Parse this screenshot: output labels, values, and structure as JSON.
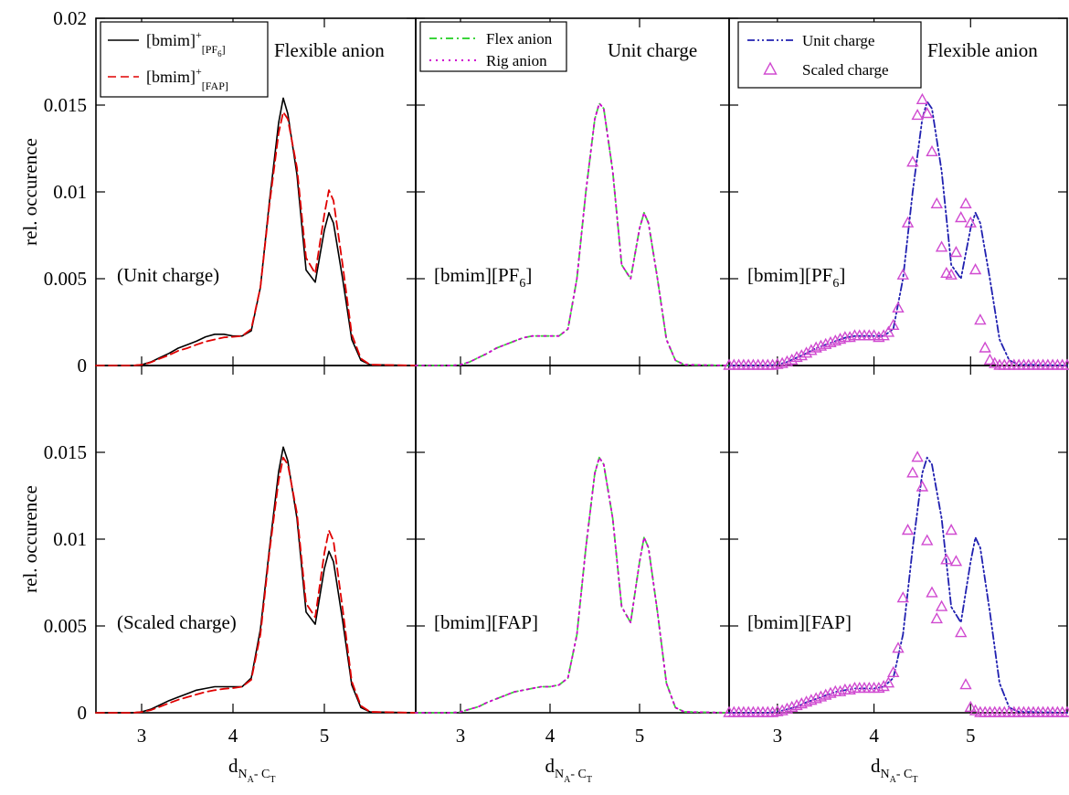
{
  "chart_data": {
    "type": "line",
    "ylabel": "rel. occurence",
    "xlabel": {
      "main": "d",
      "sub_a": "N",
      "sub_a_sub": "A",
      "sep": "- C",
      "sub_b": "T"
    },
    "xlim": [
      2.5,
      6.0
    ],
    "ylim": [
      0,
      0.02
    ],
    "xticks": [
      "3",
      "4",
      "5"
    ],
    "xtick_values": [
      3,
      4,
      5
    ],
    "yticks_top": [
      "0",
      "0.005",
      "0.01",
      "0.015",
      "0.02"
    ],
    "yticks_bottom": [
      "0",
      "0.005",
      "0.01",
      "0.015"
    ],
    "ytick_values": [
      0,
      0.005,
      0.01,
      0.015,
      0.02
    ],
    "colors": {
      "black": "#000000",
      "red": "#e00000",
      "green": "#3bd43b",
      "magenta": "#d000d0",
      "blue": "#2020b0",
      "violet": "#d04ad0"
    },
    "x": [
      2.5,
      2.9,
      3.0,
      3.1,
      3.2,
      3.3,
      3.4,
      3.5,
      3.6,
      3.7,
      3.8,
      3.9,
      4.0,
      4.1,
      4.2,
      4.3,
      4.4,
      4.5,
      4.55,
      4.6,
      4.7,
      4.8,
      4.9,
      5.0,
      5.05,
      5.1,
      5.2,
      5.3,
      5.4,
      5.5,
      6.0
    ],
    "panels": [
      {
        "row": 0,
        "col": 0,
        "title": "Flexible anion",
        "annotation": "(Unit charge)",
        "series": [
          {
            "label": "[bmim]",
            "sup": "+",
            "sub": "[PF",
            "subsub": "6",
            "subend": "]",
            "color": "black",
            "style": "solid",
            "values": [
              0,
              0,
              5e-05,
              0.0002,
              0.00045,
              0.0007,
              0.001,
              0.0012,
              0.0014,
              0.00165,
              0.0018,
              0.0018,
              0.0017,
              0.0017,
              0.002,
              0.0045,
              0.0095,
              0.014,
              0.0154,
              0.0145,
              0.011,
              0.0055,
              0.0048,
              0.0078,
              0.0088,
              0.0082,
              0.005,
              0.0015,
              0.0003,
              5e-05,
              0
            ]
          },
          {
            "label": "[bmim]",
            "sup": "+",
            "sub": "[FAP]",
            "color": "red",
            "style": "dashed",
            "values": [
              0,
              0,
              4e-05,
              0.00018,
              0.0004,
              0.0006,
              0.00085,
              0.001,
              0.0012,
              0.00138,
              0.0015,
              0.00162,
              0.00165,
              0.0017,
              0.0021,
              0.0045,
              0.0093,
              0.0134,
              0.0146,
              0.0142,
              0.0114,
              0.0062,
              0.0053,
              0.0087,
              0.0101,
              0.0095,
              0.0058,
              0.0018,
              0.0004,
              5e-05,
              0
            ]
          }
        ]
      },
      {
        "row": 0,
        "col": 1,
        "title": "Unit charge",
        "annotation": "[bmim][PF",
        "annotation_sub": "6",
        "annotation_end": "]",
        "series": [
          {
            "label": "Flex anion",
            "color": "green",
            "style": "dashdot",
            "values": [
              0,
              0,
              5e-05,
              0.0002,
              0.00045,
              0.0007,
              0.001,
              0.0012,
              0.0014,
              0.0016,
              0.0017,
              0.0017,
              0.0017,
              0.0017,
              0.0021,
              0.005,
              0.01,
              0.0142,
              0.0151,
              0.0148,
              0.0112,
              0.0058,
              0.005,
              0.0079,
              0.0088,
              0.0082,
              0.005,
              0.0015,
              0.0003,
              5e-05,
              0
            ]
          },
          {
            "label": "Rig anion",
            "color": "magenta",
            "style": "dotted",
            "values": [
              0,
              0,
              5e-05,
              0.0002,
              0.00045,
              0.0007,
              0.001,
              0.0012,
              0.0014,
              0.0016,
              0.0017,
              0.0017,
              0.0017,
              0.0017,
              0.0021,
              0.005,
              0.01,
              0.0142,
              0.0151,
              0.0148,
              0.0112,
              0.0058,
              0.005,
              0.0079,
              0.0088,
              0.0082,
              0.005,
              0.0015,
              0.0003,
              5e-05,
              0
            ]
          }
        ]
      },
      {
        "row": 0,
        "col": 2,
        "title": "Flexible anion",
        "annotation": "[bmim][PF",
        "annotation_sub": "6",
        "annotation_end": "]",
        "series": [
          {
            "label": "Unit charge",
            "color": "blue",
            "style": "dashdotdot",
            "values": [
              0,
              0,
              5e-05,
              0.0002,
              0.00045,
              0.0007,
              0.001,
              0.0012,
              0.0014,
              0.0016,
              0.0017,
              0.0017,
              0.0017,
              0.0017,
              0.0021,
              0.005,
              0.01,
              0.0142,
              0.0152,
              0.0148,
              0.0112,
              0.0058,
              0.005,
              0.0079,
              0.0088,
              0.0082,
              0.005,
              0.0015,
              0.0003,
              5e-05,
              0
            ]
          },
          {
            "label": "Scaled charge",
            "color": "violet",
            "style": "markers",
            "mx": [
              2.5,
              2.55,
              2.6,
              2.65,
              2.7,
              2.75,
              2.8,
              2.85,
              2.9,
              2.95,
              3.0,
              3.05,
              3.1,
              3.15,
              3.2,
              3.25,
              3.3,
              3.35,
              3.4,
              3.45,
              3.5,
              3.55,
              3.6,
              3.65,
              3.7,
              3.75,
              3.8,
              3.85,
              3.9,
              3.95,
              4.0,
              4.05,
              4.1,
              4.15,
              4.2,
              4.25,
              4.3,
              4.35,
              4.4,
              4.45,
              4.5,
              4.55,
              4.6,
              4.65,
              4.7,
              4.75,
              4.8,
              4.85,
              4.9,
              4.95,
              5.0,
              5.05,
              5.1,
              5.15,
              5.2,
              5.25,
              5.3,
              5.35,
              5.4,
              5.45,
              5.5,
              5.55,
              5.6,
              5.65,
              5.7,
              5.75,
              5.8,
              5.85,
              5.9,
              5.95,
              6.0
            ],
            "my": [
              0,
              0,
              0,
              0,
              0,
              0,
              0,
              0,
              0,
              0,
              5e-05,
              0.0001,
              0.0002,
              0.0003,
              0.00045,
              0.00055,
              0.0007,
              0.00085,
              0.001,
              0.0011,
              0.0012,
              0.0013,
              0.0014,
              0.0015,
              0.0016,
              0.0016,
              0.0017,
              0.0017,
              0.0017,
              0.0017,
              0.0017,
              0.0016,
              0.0017,
              0.0019,
              0.0023,
              0.0033,
              0.0052,
              0.0082,
              0.0117,
              0.0144,
              0.0153,
              0.0145,
              0.0123,
              0.0093,
              0.0068,
              0.0053,
              0.0052,
              0.0065,
              0.0085,
              0.0093,
              0.0082,
              0.0055,
              0.0026,
              0.001,
              0.0003,
              0.0001,
              0,
              0,
              0,
              0,
              0,
              0,
              0,
              0,
              0,
              0,
              0,
              0,
              0,
              0,
              0
            ]
          }
        ]
      },
      {
        "row": 1,
        "col": 0,
        "title": "",
        "annotation": "(Scaled charge)",
        "series": [
          {
            "label": "[bmim]+[PF6]",
            "color": "black",
            "style": "solid",
            "values": [
              0,
              0,
              5e-05,
              0.0002,
              0.00045,
              0.0007,
              0.0009,
              0.0011,
              0.0013,
              0.0014,
              0.0015,
              0.0015,
              0.0015,
              0.0015,
              0.002,
              0.0048,
              0.0095,
              0.0139,
              0.0153,
              0.0145,
              0.0112,
              0.0058,
              0.0051,
              0.0083,
              0.0093,
              0.0087,
              0.0053,
              0.0016,
              0.0003,
              5e-05,
              0
            ]
          },
          {
            "label": "[bmim]+[FAP]",
            "color": "red",
            "style": "dashed",
            "values": [
              0,
              0,
              4e-05,
              0.00015,
              0.00035,
              0.00055,
              0.00075,
              0.0009,
              0.00105,
              0.0012,
              0.0013,
              0.00138,
              0.00142,
              0.0015,
              0.0019,
              0.0045,
              0.0093,
              0.0134,
              0.0147,
              0.0143,
              0.0115,
              0.0063,
              0.0055,
              0.0092,
              0.0105,
              0.0099,
              0.006,
              0.0018,
              0.0004,
              5e-05,
              0
            ]
          }
        ]
      },
      {
        "row": 1,
        "col": 1,
        "title": "",
        "annotation": "[bmim][FAP]",
        "series": [
          {
            "label": "Flex anion",
            "color": "green",
            "style": "dashdot",
            "values": [
              0,
              0,
              5e-05,
              0.0002,
              0.00035,
              0.0006,
              0.0008,
              0.001,
              0.0012,
              0.0013,
              0.0014,
              0.0015,
              0.0015,
              0.0016,
              0.002,
              0.0045,
              0.0095,
              0.0138,
              0.0147,
              0.0143,
              0.0112,
              0.0061,
              0.0052,
              0.0087,
              0.0101,
              0.0095,
              0.0058,
              0.0017,
              0.0003,
              5e-05,
              0
            ]
          },
          {
            "label": "Rig anion",
            "color": "magenta",
            "style": "dotted",
            "values": [
              0,
              0,
              5e-05,
              0.0002,
              0.00035,
              0.0006,
              0.0008,
              0.001,
              0.0012,
              0.0013,
              0.0014,
              0.0015,
              0.0015,
              0.0016,
              0.002,
              0.0045,
              0.0095,
              0.0138,
              0.0147,
              0.0143,
              0.0112,
              0.0061,
              0.0052,
              0.0087,
              0.0101,
              0.0095,
              0.0058,
              0.0017,
              0.0003,
              5e-05,
              0
            ]
          }
        ]
      },
      {
        "row": 1,
        "col": 2,
        "title": "",
        "annotation": "[bmim][FAP]",
        "series": [
          {
            "label": "Unit charge",
            "color": "blue",
            "style": "dashdotdot",
            "values": [
              0,
              0,
              5e-05,
              0.0002,
              0.00035,
              0.0006,
              0.0008,
              0.001,
              0.0012,
              0.0013,
              0.0014,
              0.0014,
              0.0014,
              0.0015,
              0.002,
              0.0045,
              0.0095,
              0.0138,
              0.0147,
              0.0143,
              0.0112,
              0.0061,
              0.0052,
              0.0087,
              0.0101,
              0.0095,
              0.0058,
              0.0017,
              0.0003,
              5e-05,
              0
            ]
          },
          {
            "label": "Scaled charge",
            "color": "violet",
            "style": "markers",
            "mx": [
              2.5,
              2.55,
              2.6,
              2.65,
              2.7,
              2.75,
              2.8,
              2.85,
              2.9,
              2.95,
              3.0,
              3.05,
              3.1,
              3.15,
              3.2,
              3.25,
              3.3,
              3.35,
              3.4,
              3.45,
              3.5,
              3.55,
              3.6,
              3.65,
              3.7,
              3.75,
              3.8,
              3.85,
              3.9,
              3.95,
              4.0,
              4.05,
              4.1,
              4.15,
              4.2,
              4.25,
              4.3,
              4.35,
              4.4,
              4.45,
              4.5,
              4.55,
              4.6,
              4.65,
              4.7,
              4.75,
              4.8,
              4.85,
              4.9,
              4.95,
              5.0,
              5.05,
              5.1,
              5.15,
              5.2,
              5.25,
              5.3,
              5.35,
              5.4,
              5.45,
              5.5,
              5.55,
              5.6,
              5.65,
              5.7,
              5.75,
              5.8,
              5.85,
              5.9,
              5.95,
              6.0
            ],
            "my": [
              0,
              0,
              0,
              0,
              0,
              0,
              0,
              0,
              0,
              0,
              5e-05,
              0.0001,
              0.0002,
              0.0003,
              0.0004,
              0.0005,
              0.0006,
              0.0007,
              0.0008,
              0.0009,
              0.001,
              0.0011,
              0.0012,
              0.0012,
              0.0013,
              0.0013,
              0.0014,
              0.0014,
              0.0014,
              0.0014,
              0.0014,
              0.0014,
              0.0015,
              0.0017,
              0.0023,
              0.0037,
              0.0066,
              0.0105,
              0.0138,
              0.0147,
              0.013,
              0.0099,
              0.0069,
              0.0054,
              0.0061,
              0.0088,
              0.0105,
              0.0087,
              0.0046,
              0.0016,
              0.0003,
              0.0001,
              0,
              0,
              0,
              0,
              0,
              0,
              0,
              0,
              0,
              0,
              0,
              0,
              0,
              0,
              0,
              0,
              0,
              0,
              0
            ]
          }
        ]
      }
    ],
    "legends": [
      {
        "panel": 0,
        "entries": [
          0,
          1
        ]
      },
      {
        "panel": 1,
        "entries": [
          0,
          1
        ]
      },
      {
        "panel": 2,
        "entries": [
          0,
          1
        ]
      }
    ]
  }
}
